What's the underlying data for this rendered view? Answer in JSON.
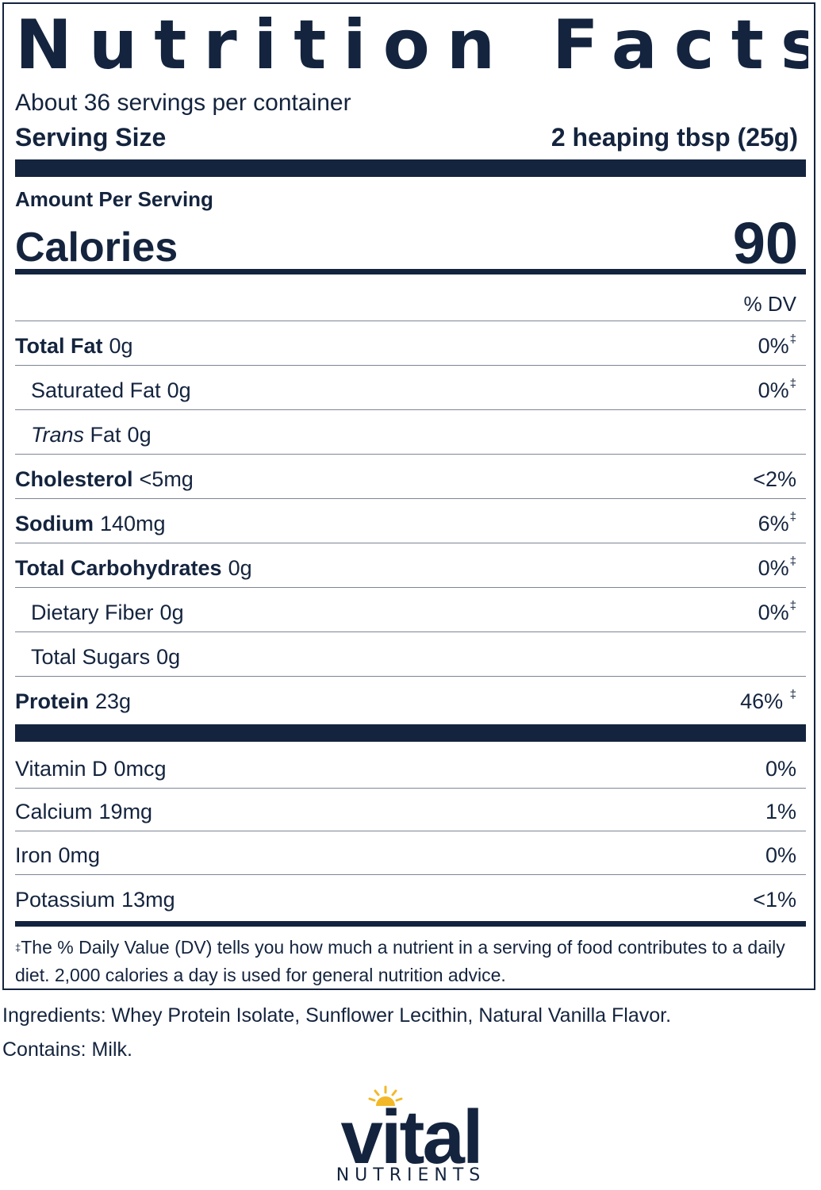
{
  "panel": {
    "title": "Nutrition Facts",
    "servings_per_container": "About 36 servings per container",
    "serving_size_label": "Serving Size",
    "serving_size_value": "2 heaping tbsp (25g)",
    "amount_per_serving": "Amount Per Serving",
    "calories_label": "Calories",
    "calories_value": "90",
    "dv_header": "% DV",
    "nutrients": [
      {
        "name": "Total Fat",
        "amount": "0g",
        "dv": "0%",
        "mark": "‡"
      },
      {
        "name": "Saturated Fat",
        "amount": "0g",
        "dv": "0%",
        "mark": "‡"
      },
      {
        "name": "Trans",
        "suffix": "Fat",
        "amount": "0g",
        "dv": "",
        "mark": ""
      },
      {
        "name": "Cholesterol",
        "amount": "<5mg",
        "dv": "<2%",
        "mark": ""
      },
      {
        "name": "Sodium",
        "amount": "140mg",
        "dv": "6%",
        "mark": "‡"
      },
      {
        "name": "Total Carbohydrates",
        "amount": "0g",
        "dv": "0%",
        "mark": "‡"
      },
      {
        "name": "Dietary Fiber",
        "amount": "0g",
        "dv": "0%",
        "mark": "‡"
      },
      {
        "name": "Total Sugars",
        "amount": "0g",
        "dv": "",
        "mark": ""
      },
      {
        "name": "Protein",
        "amount": "23g",
        "dv": "46% ",
        "mark": "‡"
      }
    ],
    "vitamins": [
      {
        "name": "Vitamin D",
        "amount": "0mcg",
        "dv": "0%"
      },
      {
        "name": "Calcium",
        "amount": "19mg",
        "dv": "1%"
      },
      {
        "name": "Iron",
        "amount": "0mg",
        "dv": "0%"
      },
      {
        "name": "Potassium",
        "amount": "13mg",
        "dv": "<1%"
      }
    ],
    "footnote_mark": "‡",
    "footnote": "The % Daily Value (DV) tells you how much a nutrient in a serving of food contributes to a daily diet. 2,000 calories a day is used for general nutrition advice."
  },
  "ingredients": "Ingredients: Whey Protein Isolate, Sunflower Lecithin, Natural Vanilla Flavor.",
  "contains": "Contains: Milk.",
  "logo": {
    "word": "vital",
    "subword": "NUTRIENTS",
    "colors": {
      "navy": "#14243e",
      "sun": "#f2b827"
    }
  }
}
